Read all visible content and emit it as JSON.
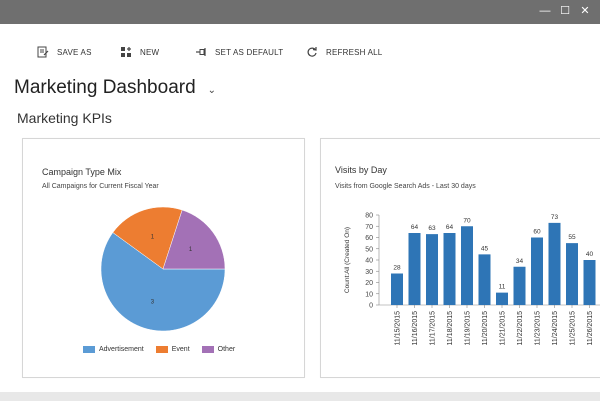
{
  "window": {
    "controls": [
      {
        "name": "minimize",
        "glyph": "—"
      },
      {
        "name": "maximize",
        "glyph": "☐"
      },
      {
        "name": "close",
        "glyph": "✕"
      }
    ]
  },
  "toolbar": {
    "save_as": "SAVE AS",
    "new": "NEW",
    "set_default": "SET AS DEFAULT",
    "refresh_all": "REFRESH ALL"
  },
  "dashboard": {
    "title": "Marketing Dashboard",
    "section_title": "Marketing KPIs"
  },
  "campaign_chart": {
    "title": "Campaign Type Mix",
    "subtitle": "All Campaigns for Current Fiscal Year"
  },
  "visits_chart": {
    "title": "Visits by Day",
    "subtitle": "Visits from Google Search Ads - Last 30 days"
  },
  "colors": {
    "bar": "#2e75b6",
    "advertisement": "#5b9bd5",
    "event": "#ed7d31",
    "other": "#a371b6"
  },
  "chart_data": [
    {
      "type": "pie",
      "title": "Campaign Type Mix",
      "subtitle": "All Campaigns for Current Fiscal Year",
      "categories": [
        "Advertisement",
        "Event",
        "Other"
      ],
      "values": [
        3,
        1,
        1
      ],
      "legend": "bottom"
    },
    {
      "type": "bar",
      "title": "Visits by Day",
      "subtitle": "Visits from Google Search Ads - Last 30 days",
      "ylabel": "Count:All (Created On)",
      "xlabel": "",
      "ylim": [
        0,
        80
      ],
      "yticks": [
        0,
        10,
        20,
        30,
        40,
        50,
        60,
        70,
        80
      ],
      "categories": [
        "11/15/2015",
        "11/16/2015",
        "11/17/2015",
        "11/18/2015",
        "11/19/2015",
        "11/20/2015",
        "11/21/2015",
        "11/22/2015",
        "11/23/2015",
        "11/24/2015",
        "11/25/2015",
        "11/26/2015"
      ],
      "values": [
        28,
        64,
        63,
        64,
        70,
        45,
        11,
        34,
        60,
        73,
        55,
        40
      ]
    }
  ]
}
